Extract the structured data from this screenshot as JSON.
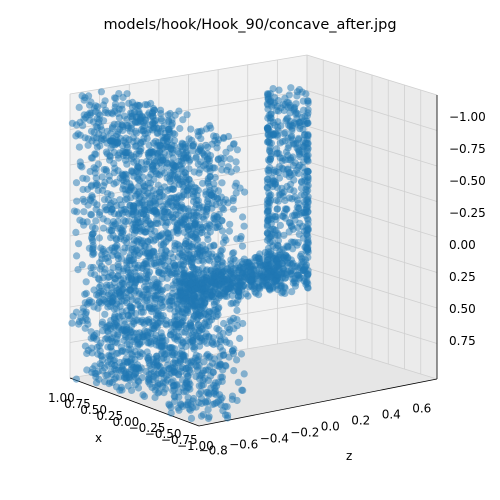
{
  "chart_data": {
    "type": "scatter",
    "projection": "3d",
    "title": "models/hook/Hook_90/concave_after.jpg",
    "xlabel": "x",
    "ylabel": "",
    "zlabel": "z",
    "marker_color": "#1f77b4",
    "marker_alpha": 0.5,
    "grid": true,
    "x_ticks": [
      "1.00",
      "0.75",
      "0.50",
      "0.25",
      "0.00",
      "−0.25",
      "−0.50",
      "−0.75",
      "−1.00"
    ],
    "z_ticks": [
      "−0.8",
      "−0.6",
      "−0.4",
      "−0.2",
      "0.0",
      "0.2",
      "0.4",
      "0.6"
    ],
    "vertical_ticks": [
      "−1.00",
      "−0.75",
      "−0.50",
      "−0.25",
      "0.00",
      "0.25",
      "0.50",
      "0.75"
    ],
    "point_groups": [
      {
        "name": "",
        "shape": "block",
        "x": [
          -1.0,
          1.0
        ],
        "z": [
          -0.85,
          -0.55
        ],
        "v": [
          -1.05,
          0.9
        ]
      },
      {
        "name": "",
        "shape": "arm",
        "x": [
          -0.2,
          0.2
        ],
        "z": [
          -0.55,
          0.1
        ],
        "v": [
          0.1,
          0.3
        ]
      },
      {
        "name": "",
        "shape": "hook",
        "x": [
          -0.2,
          0.2
        ],
        "z": [
          0.0,
          0.25
        ],
        "v": [
          -1.05,
          0.3
        ]
      }
    ]
  }
}
